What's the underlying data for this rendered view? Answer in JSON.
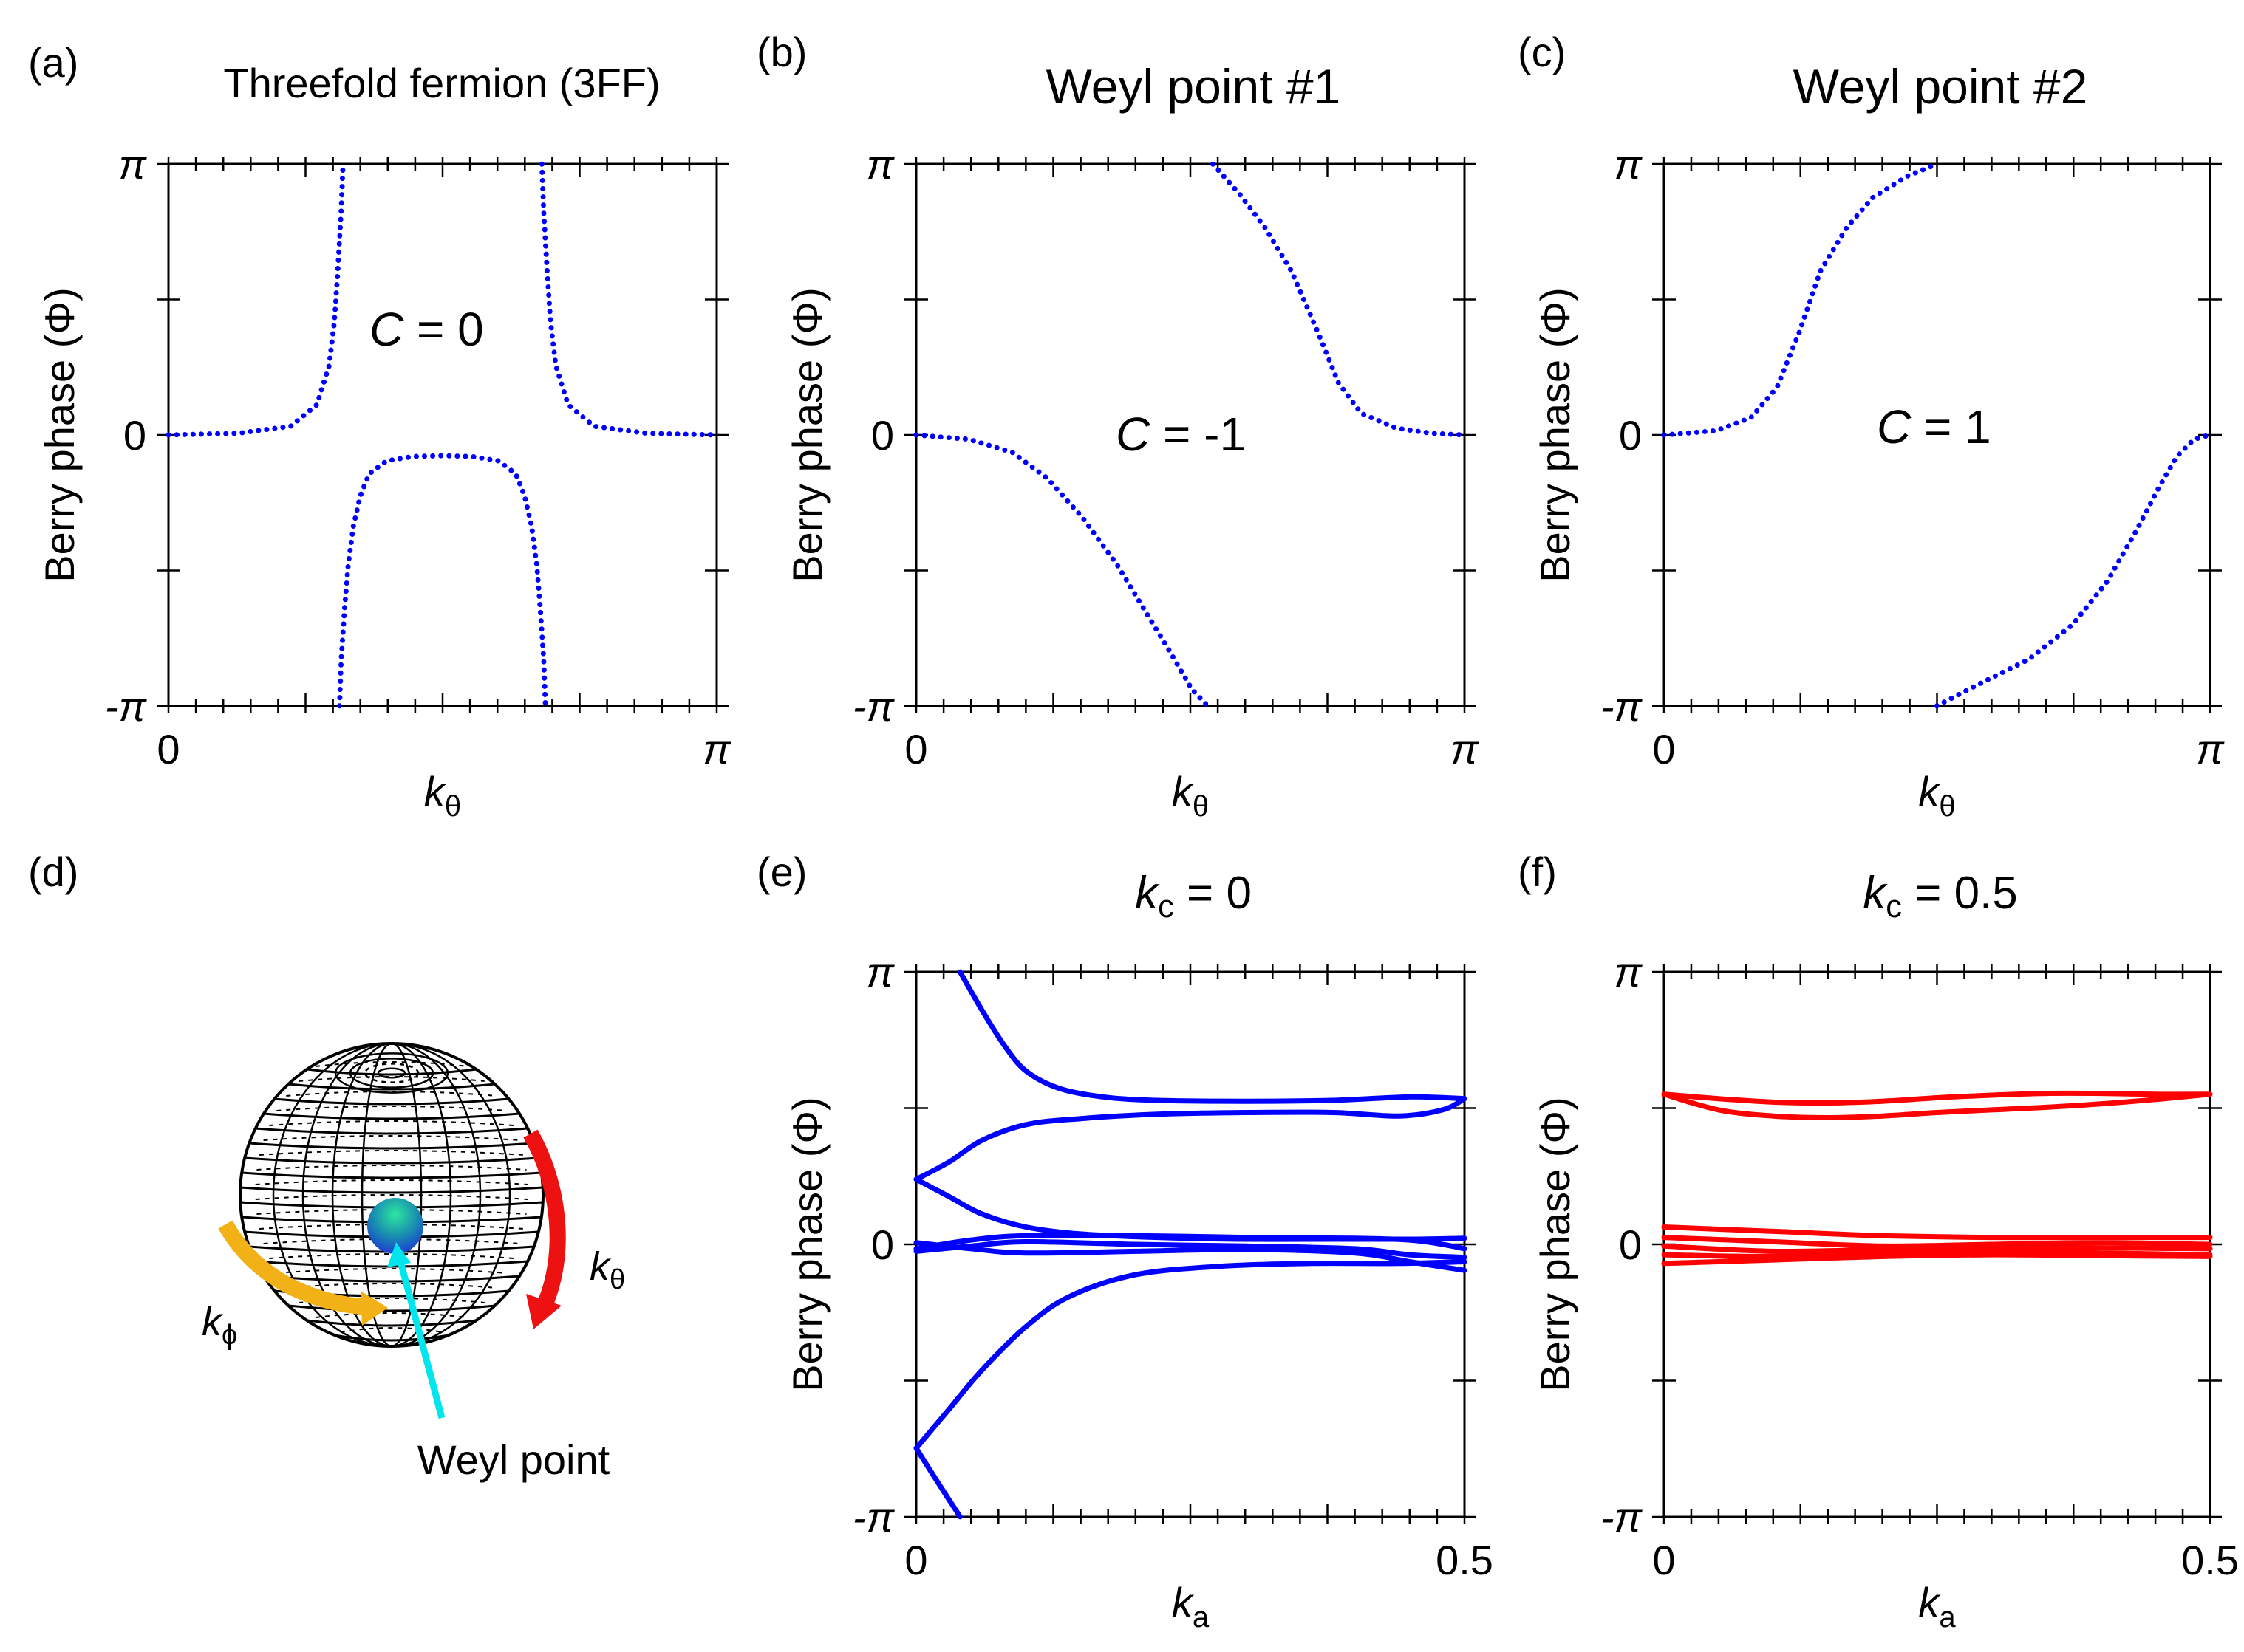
{
  "chart_data": [
    {
      "panel_label": "(a)",
      "type": "scatter",
      "title": "Threefold fermion (3FF)",
      "xlabel_main": "k",
      "xlabel_sub": "θ",
      "ylabel": "Berry phase (Φ)",
      "xticks": [
        "0",
        "π"
      ],
      "yticks": [
        "π",
        "0",
        "-π"
      ],
      "annotation_italic": "C",
      "annotation_rest": " = 0",
      "xlim": [
        0,
        3.1416
      ],
      "ylim": [
        -3.1416,
        3.1416
      ],
      "color": "#0000ff",
      "series": [
        {
          "name": "outer-left",
          "x": [
            0,
            0.4,
            0.7,
            0.85,
            0.92,
            0.95,
            0.97,
            0.99,
            1.0
          ],
          "y": [
            0,
            0.02,
            0.1,
            0.35,
            0.8,
            1.3,
            1.9,
            2.6,
            3.14
          ]
        },
        {
          "name": "outer-right",
          "x": [
            2.14,
            2.15,
            2.17,
            2.19,
            2.22,
            2.29,
            2.44,
            2.74,
            3.14
          ],
          "y": [
            3.14,
            2.6,
            1.9,
            1.3,
            0.8,
            0.35,
            0.1,
            0.02,
            0
          ]
        },
        {
          "name": "inner",
          "x": [
            0.98,
            0.99,
            1.01,
            1.03,
            1.06,
            1.1,
            1.15,
            1.25,
            1.4,
            1.57,
            1.74,
            1.89,
            1.99,
            2.04,
            2.08,
            2.11,
            2.13,
            2.15,
            2.16
          ],
          "y": [
            -3.14,
            -2.6,
            -2.0,
            -1.5,
            -1.05,
            -0.7,
            -0.45,
            -0.3,
            -0.25,
            -0.24,
            -0.25,
            -0.3,
            -0.45,
            -0.7,
            -1.05,
            -1.5,
            -2.0,
            -2.6,
            -3.14
          ]
        }
      ]
    },
    {
      "panel_label": "(b)",
      "type": "scatter",
      "title": "Weyl point #1",
      "xlabel_main": "k",
      "xlabel_sub": "θ",
      "ylabel": "Berry phase (Φ)",
      "xticks": [
        "0",
        "π"
      ],
      "yticks": [
        "π",
        "0",
        "-π"
      ],
      "annotation_italic": "C",
      "annotation_rest": " = -1",
      "xlim": [
        0,
        3.1416
      ],
      "ylim": [
        -3.1416,
        3.1416
      ],
      "color": "#0000ff",
      "series": [
        {
          "name": "lower",
          "x": [
            0,
            0.3,
            0.55,
            0.75,
            0.95,
            1.15,
            1.3,
            1.45,
            1.58,
            1.67
          ],
          "y": [
            0,
            -0.05,
            -0.2,
            -0.5,
            -0.95,
            -1.5,
            -2.0,
            -2.5,
            -2.95,
            -3.14
          ]
        },
        {
          "name": "upper",
          "x": [
            1.7,
            1.85,
            2.0,
            2.15,
            2.3,
            2.42,
            2.55,
            2.75,
            2.95,
            3.14
          ],
          "y": [
            3.14,
            2.8,
            2.4,
            1.9,
            1.2,
            0.6,
            0.25,
            0.08,
            0.02,
            0
          ]
        }
      ]
    },
    {
      "panel_label": "(c)",
      "type": "scatter",
      "title": "Weyl point #2",
      "xlabel_main": "k",
      "xlabel_sub": "θ",
      "ylabel": "Berry phase (Φ)",
      "xticks": [
        "0",
        "π"
      ],
      "yticks": [
        "π",
        "0",
        "-π"
      ],
      "annotation_italic": "C",
      "annotation_rest": " = 1",
      "xlim": [
        0,
        3.1416
      ],
      "ylim": [
        -3.1416,
        3.1416
      ],
      "color": "#0000ff",
      "series": [
        {
          "name": "upper",
          "x": [
            0,
            0.3,
            0.5,
            0.65,
            0.78,
            0.9,
            1.05,
            1.2,
            1.4,
            1.57
          ],
          "y": [
            0,
            0.05,
            0.2,
            0.55,
            1.2,
            1.9,
            2.4,
            2.75,
            3.0,
            3.14
          ]
        },
        {
          "name": "lower",
          "x": [
            1.57,
            1.8,
            2.1,
            2.35,
            2.55,
            2.72,
            2.85,
            2.95,
            3.05,
            3.14
          ],
          "y": [
            -3.14,
            -2.9,
            -2.6,
            -2.2,
            -1.7,
            -1.1,
            -0.6,
            -0.25,
            -0.05,
            0
          ]
        }
      ]
    },
    {
      "panel_label": "(e)",
      "type": "line",
      "title_main": "k",
      "title_sub": "c",
      "title_rest": " = 0",
      "xlabel_main": "k",
      "xlabel_sub": "a",
      "ylabel": "Berry phase (Φ)",
      "xticks": [
        "0",
        "0.5"
      ],
      "yticks": [
        "π",
        "0",
        "-π"
      ],
      "xlim": [
        0,
        0.5
      ],
      "ylim": [
        -3.1416,
        3.1416
      ],
      "color": "#0000ff",
      "series": [
        {
          "name": "top-branch",
          "x": [
            0.04,
            0.06,
            0.08,
            0.1,
            0.13,
            0.17,
            0.22,
            0.3,
            0.38,
            0.45,
            0.5
          ],
          "y": [
            3.14,
            2.7,
            2.3,
            2.0,
            1.8,
            1.7,
            1.66,
            1.65,
            1.66,
            1.7,
            1.68
          ]
        },
        {
          "name": "upper-loop",
          "x": [
            0,
            0.03,
            0.06,
            0.1,
            0.15,
            0.22,
            0.3,
            0.38,
            0.44,
            0.48,
            0.5
          ],
          "y": [
            0.75,
            0.95,
            1.2,
            1.38,
            1.45,
            1.5,
            1.52,
            1.52,
            1.48,
            1.55,
            1.68
          ]
        },
        {
          "name": "to-zero",
          "x": [
            0,
            0.03,
            0.06,
            0.1,
            0.15,
            0.22,
            0.3,
            0.38,
            0.45,
            0.5
          ],
          "y": [
            0.75,
            0.55,
            0.35,
            0.2,
            0.12,
            0.08,
            0.06,
            0.06,
            0.06,
            0.07
          ]
        },
        {
          "name": "zero-band-1",
          "x": [
            0,
            0.05,
            0.1,
            0.2,
            0.3,
            0.4,
            0.45,
            0.48,
            0.5
          ],
          "y": [
            -0.05,
            0.05,
            0.1,
            0.1,
            0.08,
            0.07,
            0.05,
            0.0,
            -0.05
          ]
        },
        {
          "name": "zero-band-2",
          "x": [
            0,
            0.05,
            0.1,
            0.2,
            0.3,
            0.4,
            0.45,
            0.5
          ],
          "y": [
            0.02,
            -0.05,
            -0.1,
            -0.08,
            -0.06,
            -0.1,
            -0.2,
            -0.3
          ]
        },
        {
          "name": "zero-band-3",
          "x": [
            0,
            0.05,
            0.1,
            0.2,
            0.3,
            0.4,
            0.45,
            0.5
          ],
          "y": [
            -0.08,
            -0.02,
            0.03,
            0.0,
            -0.02,
            -0.05,
            -0.12,
            -0.15
          ]
        },
        {
          "name": "bottom-branch",
          "x": [
            0,
            0.03,
            0.06,
            0.1,
            0.14,
            0.2,
            0.28,
            0.36,
            0.44,
            0.5
          ],
          "y": [
            -2.35,
            -1.9,
            -1.45,
            -0.95,
            -0.6,
            -0.35,
            -0.25,
            -0.22,
            -0.22,
            -0.2
          ]
        },
        {
          "name": "bottom-tail",
          "x": [
            0,
            0.02,
            0.04
          ],
          "y": [
            -2.35,
            -2.75,
            -3.14
          ]
        }
      ]
    },
    {
      "panel_label": "(f)",
      "type": "line",
      "title_main": "k",
      "title_sub": "c",
      "title_rest": " = 0.5",
      "xlabel_main": "k",
      "xlabel_sub": "a",
      "ylabel": "Berry phase (Φ)",
      "xticks": [
        "0",
        "0.5"
      ],
      "yticks": [
        "π",
        "0",
        "-π"
      ],
      "xlim": [
        0,
        0.5
      ],
      "ylim": [
        -3.1416,
        3.1416
      ],
      "color": "#ff0000",
      "series": [
        {
          "name": "loop-top",
          "x": [
            0,
            0.05,
            0.1,
            0.15,
            0.2,
            0.25,
            0.3,
            0.35,
            0.4,
            0.45,
            0.5
          ],
          "y": [
            1.73,
            1.68,
            1.64,
            1.63,
            1.65,
            1.69,
            1.72,
            1.74,
            1.74,
            1.73,
            1.73
          ]
        },
        {
          "name": "loop-bottom",
          "x": [
            0,
            0.05,
            0.1,
            0.15,
            0.2,
            0.25,
            0.3,
            0.35,
            0.4,
            0.45,
            0.5
          ],
          "y": [
            1.73,
            1.55,
            1.48,
            1.46,
            1.48,
            1.52,
            1.55,
            1.58,
            1.62,
            1.67,
            1.73
          ]
        },
        {
          "name": "band-1",
          "x": [
            0,
            0.1,
            0.2,
            0.3,
            0.4,
            0.5
          ],
          "y": [
            0.2,
            0.15,
            0.1,
            0.08,
            0.08,
            0.08
          ]
        },
        {
          "name": "band-2",
          "x": [
            0,
            0.1,
            0.2,
            0.3,
            0.4,
            0.5
          ],
          "y": [
            0.08,
            0.03,
            -0.02,
            0.0,
            0.02,
            0.0
          ]
        },
        {
          "name": "band-3",
          "x": [
            0,
            0.1,
            0.2,
            0.3,
            0.4,
            0.5
          ],
          "y": [
            -0.02,
            -0.08,
            -0.06,
            -0.03,
            -0.04,
            -0.05
          ]
        },
        {
          "name": "band-4",
          "x": [
            0,
            0.1,
            0.2,
            0.3,
            0.4,
            0.5
          ],
          "y": [
            -0.12,
            -0.14,
            -0.1,
            -0.08,
            -0.1,
            -0.12
          ]
        },
        {
          "name": "band-5",
          "x": [
            0,
            0.1,
            0.2,
            0.3,
            0.4,
            0.5
          ],
          "y": [
            -0.22,
            -0.18,
            -0.14,
            -0.12,
            -0.13,
            -0.14
          ]
        }
      ]
    }
  ],
  "schematic": {
    "panel_label": "(d)",
    "label_phi_main": "k",
    "label_phi_sub": "ϕ",
    "label_theta_main": "k",
    "label_theta_sub": "θ",
    "weyl_point_label": "Weyl point",
    "arrow_phi_color": "#f2b117",
    "arrow_theta_color": "#ee1111",
    "pointer_color": "#00e5ee"
  }
}
